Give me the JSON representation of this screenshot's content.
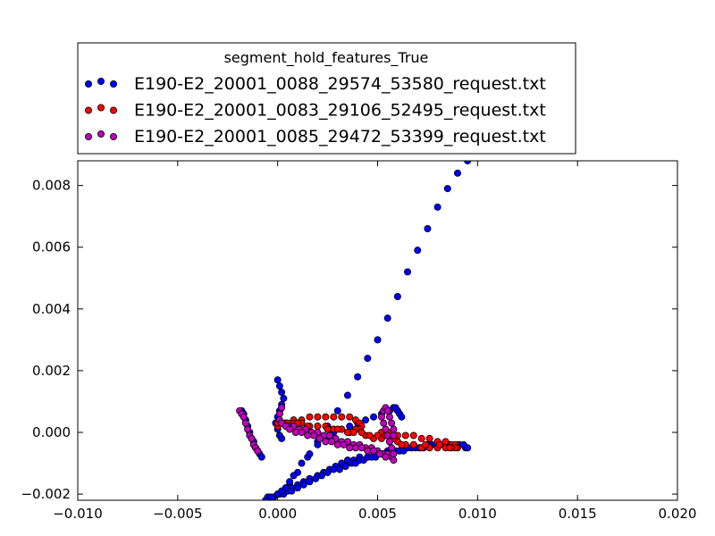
{
  "chart_data": {
    "type": "scatter",
    "title": "",
    "xlabel": "",
    "ylabel": "",
    "xlim": [
      -0.01,
      0.02
    ],
    "ylim": [
      -0.0022,
      0.0088
    ],
    "x_ticks": [
      -0.01,
      -0.005,
      0.0,
      0.005,
      0.01,
      0.015,
      0.02
    ],
    "x_tick_labels": [
      "−0.010",
      "−0.005",
      "0.000",
      "0.005",
      "0.010",
      "0.015",
      "0.020"
    ],
    "y_ticks": [
      -0.002,
      0.0,
      0.002,
      0.004,
      0.006,
      0.008
    ],
    "y_tick_labels": [
      "−0.002",
      "0.000",
      "0.002",
      "0.004",
      "0.006",
      "0.008"
    ],
    "grid": false,
    "legend": {
      "title": "segment_hold_features_True",
      "placement": "above-plot"
    },
    "series": [
      {
        "name": "E190-E2_20001_0088_29574_53580_request.txt",
        "color": "#0000ff",
        "x": [
          -0.0004,
          0.0,
          0.0003,
          0.0006,
          0.001,
          0.0015,
          0.002,
          0.0025,
          0.003,
          0.0035,
          0.004,
          0.0045,
          0.005,
          0.0055,
          0.006,
          0.0065,
          0.007,
          0.0075,
          0.008,
          0.0085,
          0.009,
          0.0095,
          0.0004,
          0.0007,
          0.001,
          0.0013,
          0.0016,
          0.002,
          0.0023,
          0.0026,
          0.0029,
          0.0032,
          0.0035,
          0.0038,
          0.0041,
          0.0045,
          0.0049,
          0.0052,
          0.0055,
          0.0058,
          0.0061,
          0.0064,
          0.0067,
          0.0071,
          0.0075,
          0.0081,
          0.0086,
          0.009,
          0.0094,
          0.0095,
          -0.0005,
          -0.0002,
          0.0001,
          0.0003,
          0.0005,
          0.0007,
          0.001,
          0.0013,
          0.0016,
          0.0019,
          0.0022,
          0.0025,
          0.0028,
          0.0031,
          0.0034,
          0.0037,
          0.0039,
          0.0041,
          0.0043,
          0.0045,
          0.0047,
          0.0049,
          0.0051,
          0.0053,
          0.0055,
          0.0057,
          0.0059,
          0.0061,
          0.0063,
          0.0065,
          0.0067,
          0.0069,
          0.0071,
          0.0073,
          0.0075,
          0.0077,
          0.0079,
          0.0081,
          0.0083,
          0.0085,
          0.0087,
          0.0089,
          0.0091,
          0.0093,
          -0.0006,
          -0.0003,
          0.0,
          0.0002,
          0.0004,
          0.0006,
          0.0008,
          0.0012,
          0.0016,
          0.002,
          0.0024,
          0.0028,
          0.0032,
          0.0036,
          0.004,
          0.0044,
          0.0048,
          0.0052,
          0.0056,
          0.0058,
          0.0059,
          0.006,
          0.0061,
          0.0062,
          -0.0018,
          -0.0017,
          -0.0016,
          -0.0015,
          -0.0014,
          -0.0013,
          -0.0012,
          -0.0011,
          -0.001,
          -0.0009,
          -0.0008,
          0.0,
          0.0001,
          0.0002,
          0.0003,
          0.0002,
          0.0001,
          0.0,
          -0.0001,
          0.0,
          0.0001,
          0.0002
        ],
        "y": [
          -0.0021,
          -0.002,
          -0.0019,
          -0.0017,
          -0.0013,
          -0.0008,
          -0.0003,
          0.0002,
          0.0007,
          0.0012,
          0.0018,
          0.0024,
          0.003,
          0.0037,
          0.0044,
          0.0052,
          0.0059,
          0.0066,
          0.0073,
          0.0079,
          0.0084,
          0.0088,
          -0.0019,
          -0.0018,
          -0.0017,
          -0.0016,
          -0.0015,
          -0.0014,
          -0.0013,
          -0.0012,
          -0.0011,
          -0.001,
          -0.0009,
          -0.0009,
          -0.0008,
          -0.0008,
          -0.0007,
          -0.0007,
          -0.0006,
          -0.0006,
          -0.0006,
          -0.0005,
          -0.0005,
          -0.0005,
          -0.0004,
          -0.0004,
          -0.0004,
          -0.0004,
          -0.0005,
          -0.0005,
          -0.0021,
          -0.0021,
          -0.002,
          -0.002,
          -0.0019,
          -0.0019,
          -0.0018,
          -0.0017,
          -0.0016,
          -0.0015,
          -0.0014,
          -0.0013,
          -0.0012,
          -0.0012,
          -0.0011,
          -0.001,
          -0.001,
          -0.0009,
          -0.0009,
          -0.0008,
          -0.0008,
          -0.0008,
          -0.0007,
          -0.0007,
          -0.0007,
          -0.0006,
          -0.0006,
          -0.0006,
          -0.0006,
          -0.0005,
          -0.0005,
          -0.0005,
          -0.0005,
          -0.0005,
          -0.0004,
          -0.0004,
          -0.0004,
          -0.0004,
          -0.0004,
          -0.0004,
          -0.0004,
          -0.0004,
          -0.0004,
          -0.0004,
          -0.0022,
          -0.0021,
          -0.002,
          -0.0019,
          -0.0018,
          -0.0016,
          -0.0014,
          -0.001,
          -0.0007,
          -0.0004,
          -0.0002,
          0.0,
          0.0001,
          0.0002,
          0.0003,
          0.0004,
          0.0005,
          0.0006,
          0.0007,
          0.0008,
          0.0008,
          0.0007,
          0.0006,
          0.0005,
          0.0007,
          0.0006,
          0.0004,
          0.0002,
          0.0,
          -0.0002,
          -0.0003,
          -0.0005,
          -0.0006,
          -0.0007,
          -0.0008,
          0.0017,
          0.0015,
          0.0013,
          0.0011,
          0.0009,
          0.0007,
          0.0005,
          0.0003,
          0.0001,
          -0.0001,
          -0.0002
        ]
      },
      {
        "name": "E190-E2_20001_0083_29106_52495_request.txt",
        "color": "#ff0000",
        "x": [
          0.0,
          0.0004,
          0.0008,
          0.0012,
          0.0016,
          0.002,
          0.0024,
          0.0028,
          0.0032,
          0.0036,
          0.0039,
          0.0041,
          0.0042,
          0.0041,
          0.0039,
          0.0036,
          0.0032,
          0.0028,
          0.0024,
          0.002,
          0.0016,
          0.0012,
          0.0008,
          0.0004,
          0.0,
          0.0052,
          0.0056,
          0.006,
          0.0064,
          0.0068,
          0.0072,
          0.0076,
          0.008,
          0.0084,
          0.0087,
          0.0089,
          0.009,
          0.0089,
          0.0087,
          0.0084,
          0.008,
          0.0076,
          0.0072,
          0.0068,
          0.0064,
          0.006,
          0.0056,
          0.0052,
          0.0048,
          0.0044,
          0.0062,
          0.0068,
          0.0074,
          0.0081,
          0.0086,
          0.0005,
          0.001,
          0.0015,
          0.002,
          0.0025,
          0.003,
          0.0035,
          0.0038,
          0.0042,
          0.0046,
          0.005,
          0.0054,
          0.0058
        ],
        "y": [
          0.0002,
          0.0003,
          0.0004,
          0.0004,
          0.0005,
          0.0005,
          0.0005,
          0.0005,
          0.0005,
          0.0005,
          0.0004,
          0.0003,
          0.0002,
          0.0001,
          0.0001,
          0.0,
          0.0001,
          0.0001,
          0.0002,
          0.0002,
          0.0002,
          0.0003,
          0.0003,
          0.0003,
          0.0003,
          0.0,
          0.0,
          -0.0001,
          -0.0001,
          -0.0001,
          -0.0002,
          -0.0002,
          -0.0003,
          -0.0003,
          -0.0004,
          -0.0004,
          -0.0005,
          -0.0005,
          -0.0005,
          -0.0005,
          -0.0005,
          -0.0005,
          -0.0005,
          -0.0004,
          -0.0004,
          -0.0003,
          -0.0003,
          -0.0002,
          -0.0002,
          -0.0001,
          -0.0004,
          -0.0004,
          -0.0004,
          -0.0004,
          -0.0005,
          0.0003,
          0.0003,
          0.0002,
          0.0002,
          0.0001,
          0.0001,
          0.0,
          0.0,
          0.0,
          -0.0001,
          -0.0001,
          -0.0001,
          -0.0002
        ]
      },
      {
        "name": "E190-E2_20001_0085_29472_53399_request.txt",
        "color": "#bf00bf",
        "x": [
          0.0002,
          0.0005,
          0.0008,
          0.0011,
          0.0014,
          0.0017,
          0.002,
          0.0023,
          0.0026,
          0.0029,
          0.0032,
          0.0035,
          0.0038,
          0.0041,
          0.0044,
          0.0047,
          0.005,
          0.0053,
          0.0055,
          0.0057,
          0.0058,
          0.0058,
          0.0057,
          0.0056,
          0.0055,
          0.0054,
          0.0053,
          0.0052,
          0.0053,
          0.0054,
          0.0055,
          0.0056,
          0.0057,
          0.0058,
          0.0058,
          0.0002,
          0.0001,
          0.0001,
          0.0002,
          0.0004,
          0.0006,
          0.0009,
          0.0012,
          0.0015,
          0.0018,
          0.0021,
          0.0024,
          0.0027,
          0.003,
          0.0033,
          0.0036,
          0.0039,
          0.0042,
          0.0045,
          0.0048,
          0.0051,
          0.0054,
          -0.0019,
          -0.0018,
          -0.0017,
          -0.0016,
          -0.0015,
          -0.0014,
          -0.0013,
          -0.0012,
          -0.0011,
          -0.001
        ],
        "y": [
          0.0003,
          0.0002,
          0.0002,
          0.0001,
          0.0001,
          0.0,
          0.0,
          -0.0001,
          -0.0001,
          -0.0002,
          -0.0003,
          -0.0003,
          -0.0004,
          -0.0004,
          -0.0005,
          -0.0005,
          -0.0006,
          -0.0007,
          -0.0007,
          -0.0008,
          -0.0009,
          -0.0007,
          -0.0005,
          -0.0003,
          -0.0001,
          0.0001,
          0.0003,
          0.0005,
          0.0007,
          0.0008,
          0.0007,
          0.0005,
          0.0003,
          0.0001,
          -0.0001,
          0.0008,
          0.0006,
          0.0004,
          0.0003,
          0.0002,
          0.0001,
          0.0,
          0.0,
          -0.0001,
          -0.0001,
          -0.0002,
          -0.0003,
          -0.0003,
          -0.0004,
          -0.0004,
          -0.0005,
          -0.0005,
          -0.0005,
          -0.0006,
          -0.0006,
          -0.0007,
          -0.0008,
          0.0007,
          0.0006,
          0.0005,
          0.0003,
          0.0001,
          -0.0001,
          -0.0002,
          -0.0004,
          -0.0005,
          -0.0006
        ]
      }
    ]
  }
}
